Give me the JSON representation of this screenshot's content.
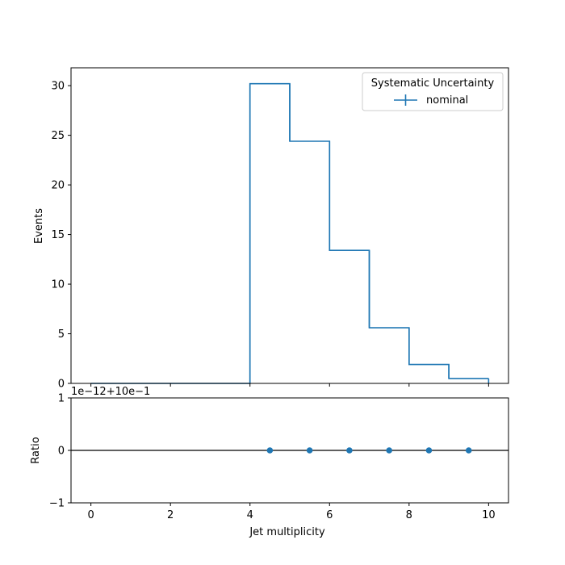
{
  "chart_data": [
    {
      "type": "histogram",
      "panel": "main",
      "ylabel": "Events",
      "xlim": [
        -0.5,
        10.5
      ],
      "ylim": [
        0,
        31.8
      ],
      "yticks": [
        0,
        5,
        10,
        15,
        20,
        25,
        30
      ],
      "xticks": [
        0,
        2,
        4,
        6,
        8,
        10
      ],
      "bin_edges": [
        0,
        1,
        2,
        3,
        4,
        5,
        6,
        7,
        8,
        9,
        10
      ],
      "series": [
        {
          "name": "nominal",
          "values": [
            0,
            0,
            0,
            0,
            30.2,
            24.4,
            13.4,
            5.6,
            1.9,
            0.5
          ],
          "color": "#1f77b4"
        }
      ],
      "legend": {
        "title": "Systematic Uncertainty",
        "placement": "top-right",
        "entries": [
          "nominal"
        ]
      },
      "grid": false
    },
    {
      "type": "scatter",
      "panel": "ratio",
      "xlabel": "Jet multiplicity",
      "ylabel": "Ratio",
      "xlim": [
        -0.5,
        10.5
      ],
      "ylim": [
        -1,
        1
      ],
      "yticks": [
        -1,
        0,
        1
      ],
      "xticks": [
        0,
        2,
        4,
        6,
        8,
        10
      ],
      "offset_text": "1e−12+10e−1",
      "reference_line": 0,
      "x": [
        4.5,
        5.5,
        6.5,
        7.5,
        8.5,
        9.5
      ],
      "y": [
        0,
        0,
        0,
        0,
        0,
        0
      ],
      "color": "#1f77b4",
      "grid": false
    }
  ]
}
